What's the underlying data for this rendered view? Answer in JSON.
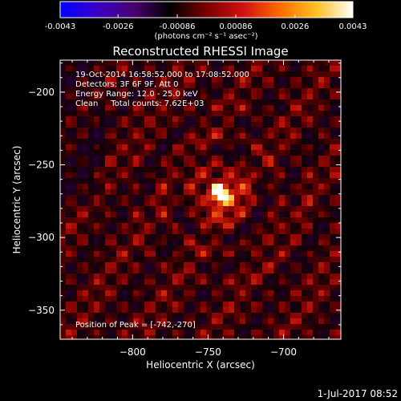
{
  "colorbar": {
    "tick_labels": [
      "-0.0043",
      "-0.0026",
      "-0.00086",
      "0.00086",
      "0.0026",
      "0.0043"
    ],
    "tick_values": [
      -0.0043,
      -0.0026,
      -0.00086,
      0.00086,
      0.0026,
      0.0043
    ],
    "range": [
      -0.0043,
      0.0043
    ],
    "units_label": "(photons cm⁻² s⁻¹ asec⁻²)",
    "colors": [
      "#0000ff",
      "#3a00c8",
      "#4a0070",
      "#000000",
      "#7a0000",
      "#d01010",
      "#ff6a00",
      "#ffc020",
      "#ffffff"
    ]
  },
  "chart_data": {
    "type": "heatmap",
    "title": "Reconstructed RHESSI Image",
    "xlabel": "Heliocentric X (arcsec)",
    "ylabel": "Heliocentric Y (arcsec)",
    "xlim": [
      -848,
      -662
    ],
    "ylim": [
      -370,
      -178
    ],
    "x_ticks": [
      -800,
      -750,
      -700
    ],
    "x_tick_labels": [
      "-800",
      "-750",
      "-700"
    ],
    "y_ticks": [
      -350,
      -300,
      -250,
      -200
    ],
    "y_tick_labels": [
      "-350",
      "-300",
      "-250",
      "-200"
    ],
    "peak": {
      "x": -742,
      "y": -270
    },
    "info_lines": [
      "19-Oct-2014 16:58:52.000 to 17:08:52.000",
      "Detectors: 3F 6F 9F, Att 0",
      "Energy Range: 12.0 - 25.0 keV",
      "Clean     Total counts: 7.62E+03"
    ],
    "peak_label": "Position of Peak = [-742,-270]"
  },
  "footer": {
    "date": "1-Jul-2017 08:52"
  }
}
